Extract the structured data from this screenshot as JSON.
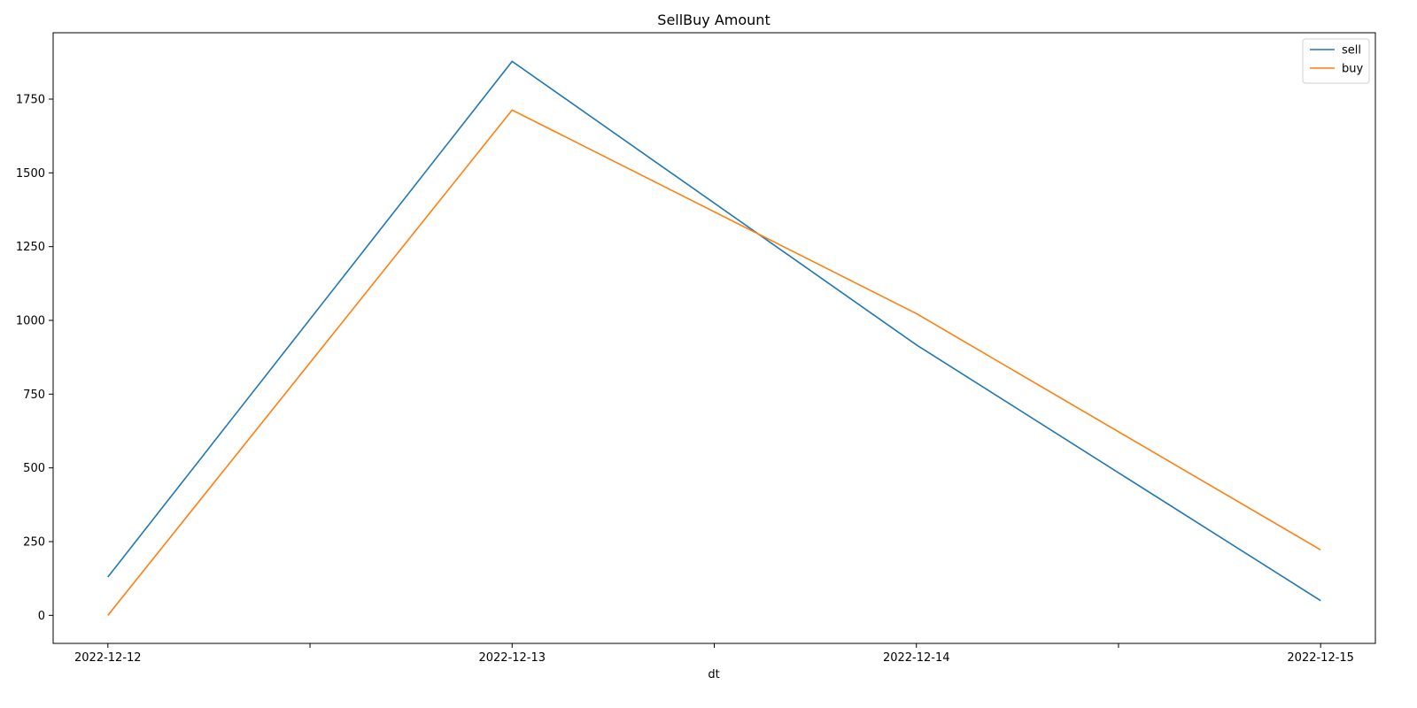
{
  "chart_data": {
    "type": "line",
    "title": "SellBuy Amount",
    "xlabel": "dt",
    "ylabel": "",
    "x": [
      "2022-12-12",
      "2022-12-13",
      "2022-12-14",
      "2022-12-15"
    ],
    "x_ticks": [
      "2022-12-12",
      "",
      "2022-12-13",
      "",
      "2022-12-14",
      "",
      "2022-12-15"
    ],
    "xlim": [
      "2022-12-11 20:45",
      "2022-12-15 03:15"
    ],
    "ylim": [
      -95,
      1975
    ],
    "y_ticks": [
      0,
      250,
      500,
      750,
      1000,
      1250,
      1500,
      1750
    ],
    "grid": false,
    "legend_position": "top-right",
    "series": [
      {
        "name": "sell",
        "color": "#1f77b4",
        "values": [
          130,
          1878,
          917,
          50
        ]
      },
      {
        "name": "buy",
        "color": "#ff7f0e",
        "values": [
          0,
          1713,
          1023,
          222
        ]
      }
    ]
  }
}
